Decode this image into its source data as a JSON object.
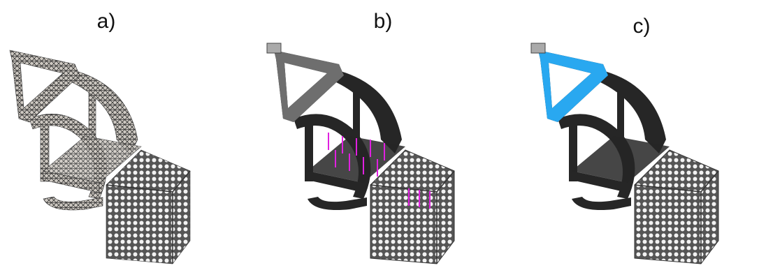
{
  "panels": [
    {
      "label": "a)"
    },
    {
      "label": "b)"
    },
    {
      "label": "c)"
    }
  ]
}
